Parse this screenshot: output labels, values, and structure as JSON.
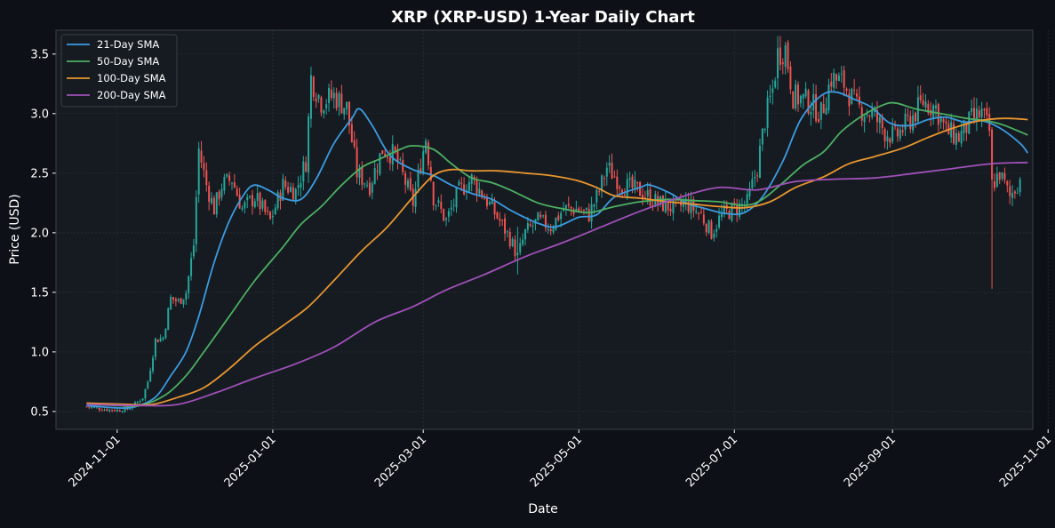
{
  "chart_data": {
    "type": "line",
    "title": "XRP (XRP-USD) 1-Year Daily Chart",
    "xlabel": "Date",
    "ylabel": "Price (USD)",
    "x_range": [
      "2024-10-08",
      "2025-10-26"
    ],
    "ylim": [
      0.35,
      3.7
    ],
    "grid": true,
    "legend_placement": "top-left",
    "x_ticks": [
      "2024-11-01",
      "2025-01-01",
      "2025-03-01",
      "2025-05-01",
      "2025-07-01",
      "2025-09-01",
      "2025-11-01"
    ],
    "y_ticks": [
      0.5,
      1.0,
      1.5,
      2.0,
      2.5,
      3.0,
      3.5
    ],
    "y_tick_labels": [
      "0.5",
      "1.0",
      "1.5",
      "2.0",
      "2.5",
      "3.0",
      "3.5"
    ],
    "colors": {
      "background": "#0d1117",
      "plot_bg": "#161b22",
      "grid": "#2a2f37",
      "text": "#ffffff",
      "up": "#26a69a",
      "down": "#ef5350"
    },
    "price_path": [
      [
        "2024-10-20",
        0.54
      ],
      [
        "2024-10-26",
        0.52
      ],
      [
        "2024-11-01",
        0.51
      ],
      [
        "2024-11-05",
        0.52
      ],
      [
        "2024-11-08",
        0.56
      ],
      [
        "2024-11-11",
        0.62
      ],
      [
        "2024-11-13",
        0.75
      ],
      [
        "2024-11-16",
        1.1
      ],
      [
        "2024-11-19",
        1.12
      ],
      [
        "2024-11-22",
        1.45
      ],
      [
        "2024-11-25",
        1.42
      ],
      [
        "2024-11-28",
        1.5
      ],
      [
        "2024-12-01",
        1.9
      ],
      [
        "2024-12-03",
        2.7
      ],
      [
        "2024-12-06",
        2.4
      ],
      [
        "2024-12-09",
        2.2
      ],
      [
        "2024-12-12",
        2.4
      ],
      [
        "2024-12-16",
        2.45
      ],
      [
        "2024-12-20",
        2.2
      ],
      [
        "2024-12-25",
        2.3
      ],
      [
        "2024-12-31",
        2.1
      ],
      [
        "2025-01-05",
        2.4
      ],
      [
        "2025-01-10",
        2.35
      ],
      [
        "2025-01-14",
        2.6
      ],
      [
        "2025-01-16",
        3.3
      ],
      [
        "2025-01-20",
        3.1
      ],
      [
        "2025-01-25",
        3.15
      ],
      [
        "2025-01-30",
        3.05
      ],
      [
        "2025-02-03",
        2.5
      ],
      [
        "2025-02-08",
        2.4
      ],
      [
        "2025-02-13",
        2.7
      ],
      [
        "2025-02-18",
        2.65
      ],
      [
        "2025-02-25",
        2.25
      ],
      [
        "2025-03-02",
        2.8
      ],
      [
        "2025-03-05",
        2.3
      ],
      [
        "2025-03-10",
        2.1
      ],
      [
        "2025-03-15",
        2.35
      ],
      [
        "2025-03-20",
        2.45
      ],
      [
        "2025-03-25",
        2.3
      ],
      [
        "2025-03-31",
        2.1
      ],
      [
        "2025-04-04",
        1.95
      ],
      [
        "2025-04-07",
        1.8
      ],
      [
        "2025-04-10",
        2.0
      ],
      [
        "2025-04-15",
        2.1
      ],
      [
        "2025-04-20",
        2.05
      ],
      [
        "2025-04-25",
        2.2
      ],
      [
        "2025-04-30",
        2.2
      ],
      [
        "2025-05-05",
        2.15
      ],
      [
        "2025-05-09",
        2.35
      ],
      [
        "2025-05-12",
        2.55
      ],
      [
        "2025-05-18",
        2.4
      ],
      [
        "2025-05-25",
        2.35
      ],
      [
        "2025-06-01",
        2.25
      ],
      [
        "2025-06-08",
        2.2
      ],
      [
        "2025-06-12",
        2.25
      ],
      [
        "2025-06-18",
        2.15
      ],
      [
        "2025-06-22",
        2.0
      ],
      [
        "2025-06-26",
        2.15
      ],
      [
        "2025-07-01",
        2.2
      ],
      [
        "2025-07-06",
        2.25
      ],
      [
        "2025-07-10",
        2.55
      ],
      [
        "2025-07-13",
        2.95
      ],
      [
        "2025-07-16",
        3.2
      ],
      [
        "2025-07-18",
        3.5
      ],
      [
        "2025-07-21",
        3.55
      ],
      [
        "2025-07-24",
        3.15
      ],
      [
        "2025-07-30",
        3.1
      ],
      [
        "2025-08-04",
        3.0
      ],
      [
        "2025-08-08",
        3.3
      ],
      [
        "2025-08-13",
        3.25
      ],
      [
        "2025-08-18",
        3.05
      ],
      [
        "2025-08-24",
        3.0
      ],
      [
        "2025-08-29",
        2.85
      ],
      [
        "2025-09-02",
        2.8
      ],
      [
        "2025-09-08",
        2.95
      ],
      [
        "2025-09-13",
        3.1
      ],
      [
        "2025-09-18",
        3.05
      ],
      [
        "2025-09-22",
        2.85
      ],
      [
        "2025-09-27",
        2.8
      ],
      [
        "2025-10-02",
        2.95
      ],
      [
        "2025-10-06",
        3.0
      ],
      [
        "2025-10-09",
        2.85
      ],
      [
        "2025-10-10",
        2.4
      ],
      [
        "2025-10-13",
        2.5
      ],
      [
        "2025-10-17",
        2.3
      ],
      [
        "2025-10-21",
        2.45
      ]
    ],
    "spikes": [
      {
        "date": "2025-10-10",
        "low": 1.53,
        "high": 2.85
      },
      {
        "date": "2025-07-18",
        "low": 3.2,
        "high": 3.65
      },
      {
        "date": "2025-04-07",
        "low": 1.65,
        "high": 2.05
      }
    ],
    "series": [
      {
        "name": "21-Day SMA",
        "color": "#3b9be0",
        "points": [
          [
            "2024-10-20",
            0.55
          ],
          [
            "2024-11-01",
            0.53
          ],
          [
            "2024-11-08",
            0.54
          ],
          [
            "2024-11-16",
            0.62
          ],
          [
            "2024-11-22",
            0.8
          ],
          [
            "2024-11-28",
            1.0
          ],
          [
            "2024-12-03",
            1.3
          ],
          [
            "2024-12-09",
            1.75
          ],
          [
            "2024-12-15",
            2.1
          ],
          [
            "2024-12-21",
            2.33
          ],
          [
            "2024-12-25",
            2.4
          ],
          [
            "2024-12-31",
            2.35
          ],
          [
            "2025-01-05",
            2.29
          ],
          [
            "2025-01-12",
            2.28
          ],
          [
            "2025-01-18",
            2.45
          ],
          [
            "2025-01-25",
            2.75
          ],
          [
            "2025-02-01",
            2.96
          ],
          [
            "2025-02-04",
            3.04
          ],
          [
            "2025-02-09",
            2.9
          ],
          [
            "2025-02-16",
            2.65
          ],
          [
            "2025-02-25",
            2.53
          ],
          [
            "2025-03-05",
            2.48
          ],
          [
            "2025-03-12",
            2.4
          ],
          [
            "2025-03-20",
            2.33
          ],
          [
            "2025-03-28",
            2.28
          ],
          [
            "2025-04-05",
            2.18
          ],
          [
            "2025-04-15",
            2.08
          ],
          [
            "2025-04-22",
            2.05
          ],
          [
            "2025-05-01",
            2.13
          ],
          [
            "2025-05-08",
            2.15
          ],
          [
            "2025-05-15",
            2.3
          ],
          [
            "2025-05-25",
            2.38
          ],
          [
            "2025-05-29",
            2.4
          ],
          [
            "2025-06-06",
            2.33
          ],
          [
            "2025-06-12",
            2.25
          ],
          [
            "2025-06-20",
            2.2
          ],
          [
            "2025-06-28",
            2.16
          ],
          [
            "2025-07-05",
            2.17
          ],
          [
            "2025-07-12",
            2.3
          ],
          [
            "2025-07-20",
            2.6
          ],
          [
            "2025-07-27",
            2.95
          ],
          [
            "2025-08-04",
            3.15
          ],
          [
            "2025-08-10",
            3.18
          ],
          [
            "2025-08-17",
            3.12
          ],
          [
            "2025-08-24",
            3.05
          ],
          [
            "2025-08-31",
            2.92
          ],
          [
            "2025-09-08",
            2.9
          ],
          [
            "2025-09-15",
            2.95
          ],
          [
            "2025-09-22",
            2.97
          ],
          [
            "2025-09-29",
            2.93
          ],
          [
            "2025-10-06",
            2.94
          ],
          [
            "2025-10-13",
            2.88
          ],
          [
            "2025-10-21",
            2.75
          ],
          [
            "2025-10-24",
            2.67
          ]
        ]
      },
      {
        "name": "50-Day SMA",
        "color": "#4caf61",
        "points": [
          [
            "2024-10-20",
            0.56
          ],
          [
            "2024-11-01",
            0.55
          ],
          [
            "2024-11-10",
            0.55
          ],
          [
            "2024-11-20",
            0.64
          ],
          [
            "2024-11-28",
            0.8
          ],
          [
            "2024-12-05",
            1.0
          ],
          [
            "2024-12-15",
            1.3
          ],
          [
            "2024-12-25",
            1.6
          ],
          [
            "2025-01-05",
            1.88
          ],
          [
            "2025-01-12",
            2.07
          ],
          [
            "2025-01-20",
            2.22
          ],
          [
            "2025-01-28",
            2.4
          ],
          [
            "2025-02-05",
            2.55
          ],
          [
            "2025-02-12",
            2.62
          ],
          [
            "2025-02-20",
            2.7
          ],
          [
            "2025-02-25",
            2.73
          ],
          [
            "2025-03-05",
            2.7
          ],
          [
            "2025-03-12",
            2.58
          ],
          [
            "2025-03-20",
            2.46
          ],
          [
            "2025-03-28",
            2.42
          ],
          [
            "2025-04-05",
            2.35
          ],
          [
            "2025-04-15",
            2.25
          ],
          [
            "2025-04-25",
            2.2
          ],
          [
            "2025-05-05",
            2.17
          ],
          [
            "2025-05-15",
            2.22
          ],
          [
            "2025-05-25",
            2.26
          ],
          [
            "2025-06-05",
            2.28
          ],
          [
            "2025-06-15",
            2.27
          ],
          [
            "2025-06-25",
            2.26
          ],
          [
            "2025-07-05",
            2.23
          ],
          [
            "2025-07-12",
            2.28
          ],
          [
            "2025-07-20",
            2.42
          ],
          [
            "2025-07-28",
            2.57
          ],
          [
            "2025-08-05",
            2.68
          ],
          [
            "2025-08-12",
            2.85
          ],
          [
            "2025-08-20",
            2.98
          ],
          [
            "2025-08-28",
            3.07
          ],
          [
            "2025-09-02",
            3.09
          ],
          [
            "2025-09-10",
            3.04
          ],
          [
            "2025-09-20",
            3.0
          ],
          [
            "2025-09-30",
            2.96
          ],
          [
            "2025-10-08",
            2.94
          ],
          [
            "2025-10-15",
            2.9
          ],
          [
            "2025-10-24",
            2.82
          ]
        ]
      },
      {
        "name": "100-Day SMA",
        "color": "#e8962e",
        "points": [
          [
            "2024-10-20",
            0.57
          ],
          [
            "2024-11-05",
            0.56
          ],
          [
            "2024-11-15",
            0.56
          ],
          [
            "2024-11-25",
            0.62
          ],
          [
            "2024-12-05",
            0.7
          ],
          [
            "2024-12-15",
            0.86
          ],
          [
            "2024-12-25",
            1.05
          ],
          [
            "2025-01-05",
            1.22
          ],
          [
            "2025-01-15",
            1.38
          ],
          [
            "2025-01-25",
            1.6
          ],
          [
            "2025-02-05",
            1.85
          ],
          [
            "2025-02-15",
            2.05
          ],
          [
            "2025-02-25",
            2.3
          ],
          [
            "2025-03-05",
            2.48
          ],
          [
            "2025-03-12",
            2.53
          ],
          [
            "2025-03-20",
            2.52
          ],
          [
            "2025-03-30",
            2.52
          ],
          [
            "2025-04-10",
            2.5
          ],
          [
            "2025-04-20",
            2.48
          ],
          [
            "2025-04-30",
            2.44
          ],
          [
            "2025-05-08",
            2.38
          ],
          [
            "2025-05-15",
            2.31
          ],
          [
            "2025-05-25",
            2.29
          ],
          [
            "2025-06-05",
            2.26
          ],
          [
            "2025-06-15",
            2.24
          ],
          [
            "2025-06-25",
            2.22
          ],
          [
            "2025-07-05",
            2.21
          ],
          [
            "2025-07-15",
            2.26
          ],
          [
            "2025-07-25",
            2.38
          ],
          [
            "2025-08-05",
            2.47
          ],
          [
            "2025-08-15",
            2.58
          ],
          [
            "2025-08-25",
            2.64
          ],
          [
            "2025-09-05",
            2.71
          ],
          [
            "2025-09-15",
            2.8
          ],
          [
            "2025-09-25",
            2.88
          ],
          [
            "2025-10-05",
            2.94
          ],
          [
            "2025-10-15",
            2.96
          ],
          [
            "2025-10-24",
            2.95
          ]
        ]
      },
      {
        "name": "200-Day SMA",
        "color": "#a050b8",
        "points": [
          [
            "2024-10-20",
            0.56
          ],
          [
            "2024-11-10",
            0.55
          ],
          [
            "2024-11-25",
            0.56
          ],
          [
            "2024-12-10",
            0.66
          ],
          [
            "2024-12-25",
            0.78
          ],
          [
            "2025-01-10",
            0.9
          ],
          [
            "2025-01-25",
            1.04
          ],
          [
            "2025-02-10",
            1.25
          ],
          [
            "2025-02-25",
            1.38
          ],
          [
            "2025-03-10",
            1.52
          ],
          [
            "2025-03-25",
            1.65
          ],
          [
            "2025-04-10",
            1.8
          ],
          [
            "2025-04-25",
            1.92
          ],
          [
            "2025-05-10",
            2.05
          ],
          [
            "2025-05-25",
            2.18
          ],
          [
            "2025-06-10",
            2.3
          ],
          [
            "2025-06-25",
            2.38
          ],
          [
            "2025-07-10",
            2.36
          ],
          [
            "2025-07-25",
            2.43
          ],
          [
            "2025-08-10",
            2.45
          ],
          [
            "2025-08-25",
            2.46
          ],
          [
            "2025-09-10",
            2.5
          ],
          [
            "2025-09-25",
            2.54
          ],
          [
            "2025-10-10",
            2.58
          ],
          [
            "2025-10-24",
            2.59
          ]
        ]
      }
    ]
  }
}
